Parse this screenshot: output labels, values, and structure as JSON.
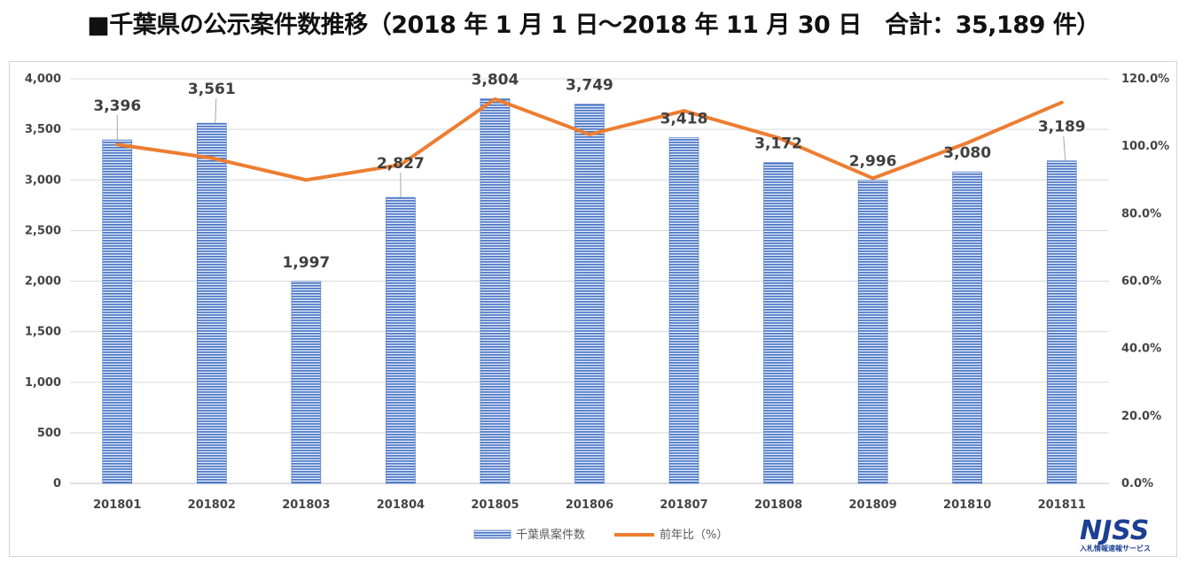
{
  "title": "■千葉県の公示案件数推移（2018 年 1 月 1 日〜2018 年 11 月 30 日　合計：35,189 件）",
  "logo": {
    "main": "NJSS",
    "sub": "入札情報速報サービス"
  },
  "colors": {
    "bar": "#4472c4",
    "bar_stripe": "#ffffff",
    "line": "#ed7d31"
  },
  "chart_data": {
    "type": "bar",
    "categories": [
      "201801",
      "201802",
      "201803",
      "201804",
      "201805",
      "201806",
      "201807",
      "201808",
      "201809",
      "201810",
      "201811"
    ],
    "series": [
      {
        "name": "千葉県案件数",
        "type": "bar",
        "axis": "left",
        "values": [
          3396,
          3561,
          1997,
          2827,
          3804,
          3749,
          3418,
          3172,
          2996,
          3080,
          3189
        ],
        "labels": [
          "3,396",
          "3,561",
          "1,997",
          "2,827",
          "3,804",
          "3,749",
          "3,418",
          "3,172",
          "2,996",
          "3,080",
          "3,189"
        ]
      },
      {
        "name": "前年比（%）",
        "type": "line",
        "axis": "right",
        "values": [
          100.5,
          96.5,
          90.0,
          94.5,
          114.0,
          103.5,
          110.5,
          102.5,
          90.5,
          101.0,
          113.0
        ]
      }
    ],
    "y_left": {
      "min": 0,
      "max": 4000,
      "step": 500,
      "tick_labels": [
        "0",
        "500",
        "1,000",
        "1,500",
        "2,000",
        "2,500",
        "3,000",
        "3,500",
        "4,000"
      ]
    },
    "y_right": {
      "min": 0,
      "max": 120,
      "step": 20,
      "tick_labels": [
        "0.0%",
        "20.0%",
        "40.0%",
        "60.0%",
        "80.0%",
        "100.0%",
        "120.0%"
      ]
    },
    "grid": true,
    "legend_position": "bottom",
    "xlabel": "",
    "ylabel": ""
  }
}
